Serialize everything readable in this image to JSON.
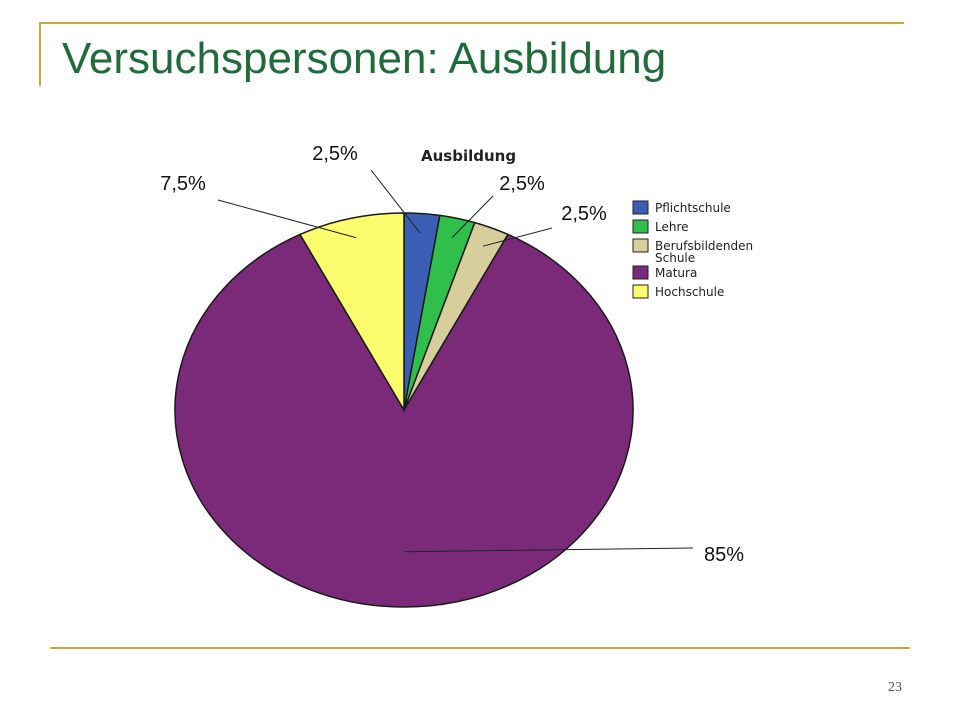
{
  "slide": {
    "title": "Versuchspersonen: Ausbildung",
    "page_number": "23"
  },
  "colors": {
    "accent_line": "#c8aa3c",
    "title_color": "#1f6b3a"
  },
  "chart_data": {
    "type": "pie",
    "title": "Ausbildung",
    "legend_position": "right",
    "slices": [
      {
        "label": "Pflichtschule",
        "value": 2.5,
        "display": "2,5%",
        "color": "#3a5fb5"
      },
      {
        "label": "Lehre",
        "value": 2.5,
        "display": "2,5%",
        "color": "#2fbf4a"
      },
      {
        "label": "Berufsbildenden Schule",
        "legend_lines": [
          "Berufsbildenden",
          "Schule"
        ],
        "value": 2.5,
        "display": "2,5%",
        "color": "#d6cf9c"
      },
      {
        "label": "Matura",
        "value": 85,
        "display": "85%",
        "color": "#7b2a7a"
      },
      {
        "label": "Hochschule",
        "value": 7.5,
        "display": "7,5%",
        "color": "#fbfb6e"
      }
    ]
  }
}
